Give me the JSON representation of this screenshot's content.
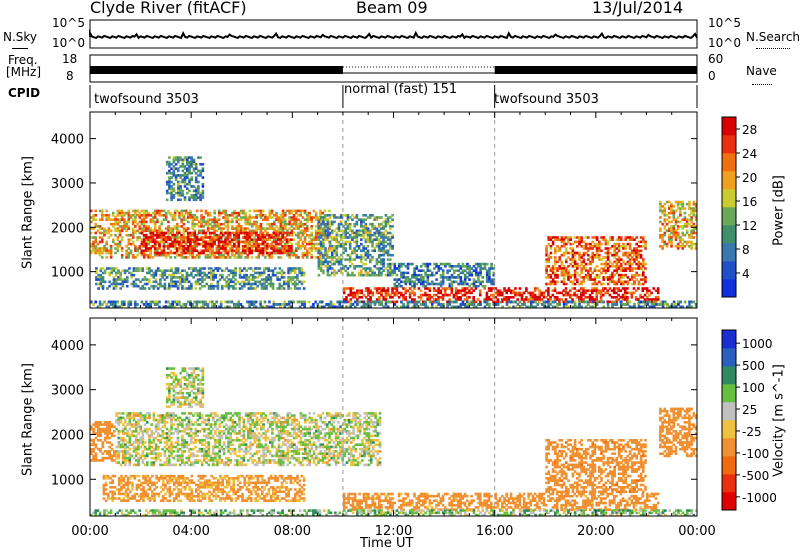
{
  "header": {
    "station": "Clyde River (fitACF)",
    "beam": "Beam 09",
    "date": "13/Jul/2014"
  },
  "top_panels": {
    "nsky_label": "N.Sky",
    "nsearch_label": "N.Search",
    "nsky_ticks": [
      "10^5",
      "10^0"
    ],
    "nsearch_ticks": [
      "10^5",
      "10^0"
    ],
    "freq_label_line1": "Freq.",
    "freq_label_line2": "[MHz]",
    "freq_ticks": [
      "18",
      "8"
    ],
    "nave_label": "Nave",
    "nave_ticks": [
      "60",
      "0"
    ],
    "cpid_label": "CPID",
    "cpid_segments": [
      {
        "name": "twofsound 3503",
        "start_h": 0,
        "end_h": 10
      },
      {
        "name": "normal (fast) 151",
        "start_h": 10,
        "end_h": 16
      },
      {
        "name": "twofsound 3503",
        "start_h": 16,
        "end_h": 24
      }
    ]
  },
  "colors": {
    "power_scale": [
      "#1030e0",
      "#2050c8",
      "#3a78b0",
      "#3f8f6a",
      "#6aa85a",
      "#c8cc30",
      "#f0a020",
      "#f07010",
      "#e83010",
      "#d80000"
    ],
    "velocity_scale": [
      "#1a2fd0",
      "#2a5fc0",
      "#2f8a60",
      "#66c040",
      "#c0c0c0",
      "#f0c040",
      "#f09030",
      "#f06a10",
      "#e83010",
      "#e00000"
    ]
  },
  "chart_data": [
    {
      "type": "heatmap",
      "name": "Power",
      "xlabel": "",
      "ylabel": "Slant Range [km]",
      "x_ticks": [
        "00:00",
        "04:00",
        "08:00",
        "12:00",
        "16:00",
        "20:00",
        "00:00"
      ],
      "xlim_hours": [
        0,
        24
      ],
      "y_ticks": [
        1000,
        2000,
        3000,
        4000
      ],
      "ylim_km": [
        180,
        4600
      ],
      "colorbar_label": "Power [dB]",
      "colorbar_ticks": [
        4,
        8,
        12,
        16,
        20,
        24,
        28
      ],
      "colorbar_range": [
        0,
        30
      ],
      "mode_change_lines_h": [
        10,
        16
      ],
      "echo_regions": [
        {
          "t0": 0.0,
          "t1": 9.5,
          "r0": 1300,
          "r1": 2400,
          "level": 18
        },
        {
          "t0": 2.0,
          "t1": 8.0,
          "r0": 1400,
          "r1": 1900,
          "level": 26
        },
        {
          "t0": 0.2,
          "t1": 8.5,
          "r0": 600,
          "r1": 1100,
          "level": 9
        },
        {
          "t0": 3.0,
          "t1": 4.5,
          "r0": 2600,
          "r1": 3600,
          "level": 8
        },
        {
          "t0": 9.0,
          "t1": 12.0,
          "r0": 900,
          "r1": 2300,
          "level": 10
        },
        {
          "t0": 10.0,
          "t1": 22.5,
          "r0": 300,
          "r1": 650,
          "level": 26
        },
        {
          "t0": 12.0,
          "t1": 16.0,
          "r0": 650,
          "r1": 1200,
          "level": 6
        },
        {
          "t0": 18.0,
          "t1": 22.0,
          "r0": 700,
          "r1": 1800,
          "level": 22
        },
        {
          "t0": 22.5,
          "t1": 24.0,
          "r0": 1500,
          "r1": 2600,
          "level": 18
        },
        {
          "t0": 0.0,
          "t1": 24.0,
          "r0": 180,
          "r1": 350,
          "level": 8
        }
      ]
    },
    {
      "type": "heatmap",
      "name": "Velocity",
      "xlabel": "Time UT",
      "ylabel": "Slant Range [km]",
      "x_ticks": [
        "00:00",
        "04:00",
        "08:00",
        "12:00",
        "16:00",
        "20:00",
        "00:00"
      ],
      "xlim_hours": [
        0,
        24
      ],
      "y_ticks": [
        1000,
        2000,
        3000,
        4000
      ],
      "ylim_km": [
        180,
        4600
      ],
      "colorbar_label": "Velocity [m s^-1]",
      "colorbar_ticks": [
        "1000",
        "500",
        "100",
        "25",
        "-25",
        "-100",
        "-500",
        "-1000"
      ],
      "mode_change_lines_h": [
        10,
        16
      ],
      "echo_regions": [
        {
          "t0": 1.0,
          "t1": 11.5,
          "r0": 1300,
          "r1": 2500,
          "vel": 0
        },
        {
          "t0": 0.0,
          "t1": 1.0,
          "r0": 1400,
          "r1": 2300,
          "vel": -300
        },
        {
          "t0": 0.5,
          "t1": 8.5,
          "r0": 500,
          "r1": 1100,
          "vel": -150
        },
        {
          "t0": 10.0,
          "t1": 22.5,
          "r0": 300,
          "r1": 700,
          "vel": -200
        },
        {
          "t0": 18.0,
          "t1": 22.0,
          "r0": 700,
          "r1": 1900,
          "vel": -400
        },
        {
          "t0": 22.5,
          "t1": 24.0,
          "r0": 1500,
          "r1": 2600,
          "vel": -300
        },
        {
          "t0": 3.0,
          "t1": 4.5,
          "r0": 2600,
          "r1": 3500,
          "vel": 0
        },
        {
          "t0": 0.0,
          "t1": 24.0,
          "r0": 180,
          "r1": 330,
          "vel": 50
        }
      ]
    }
  ]
}
